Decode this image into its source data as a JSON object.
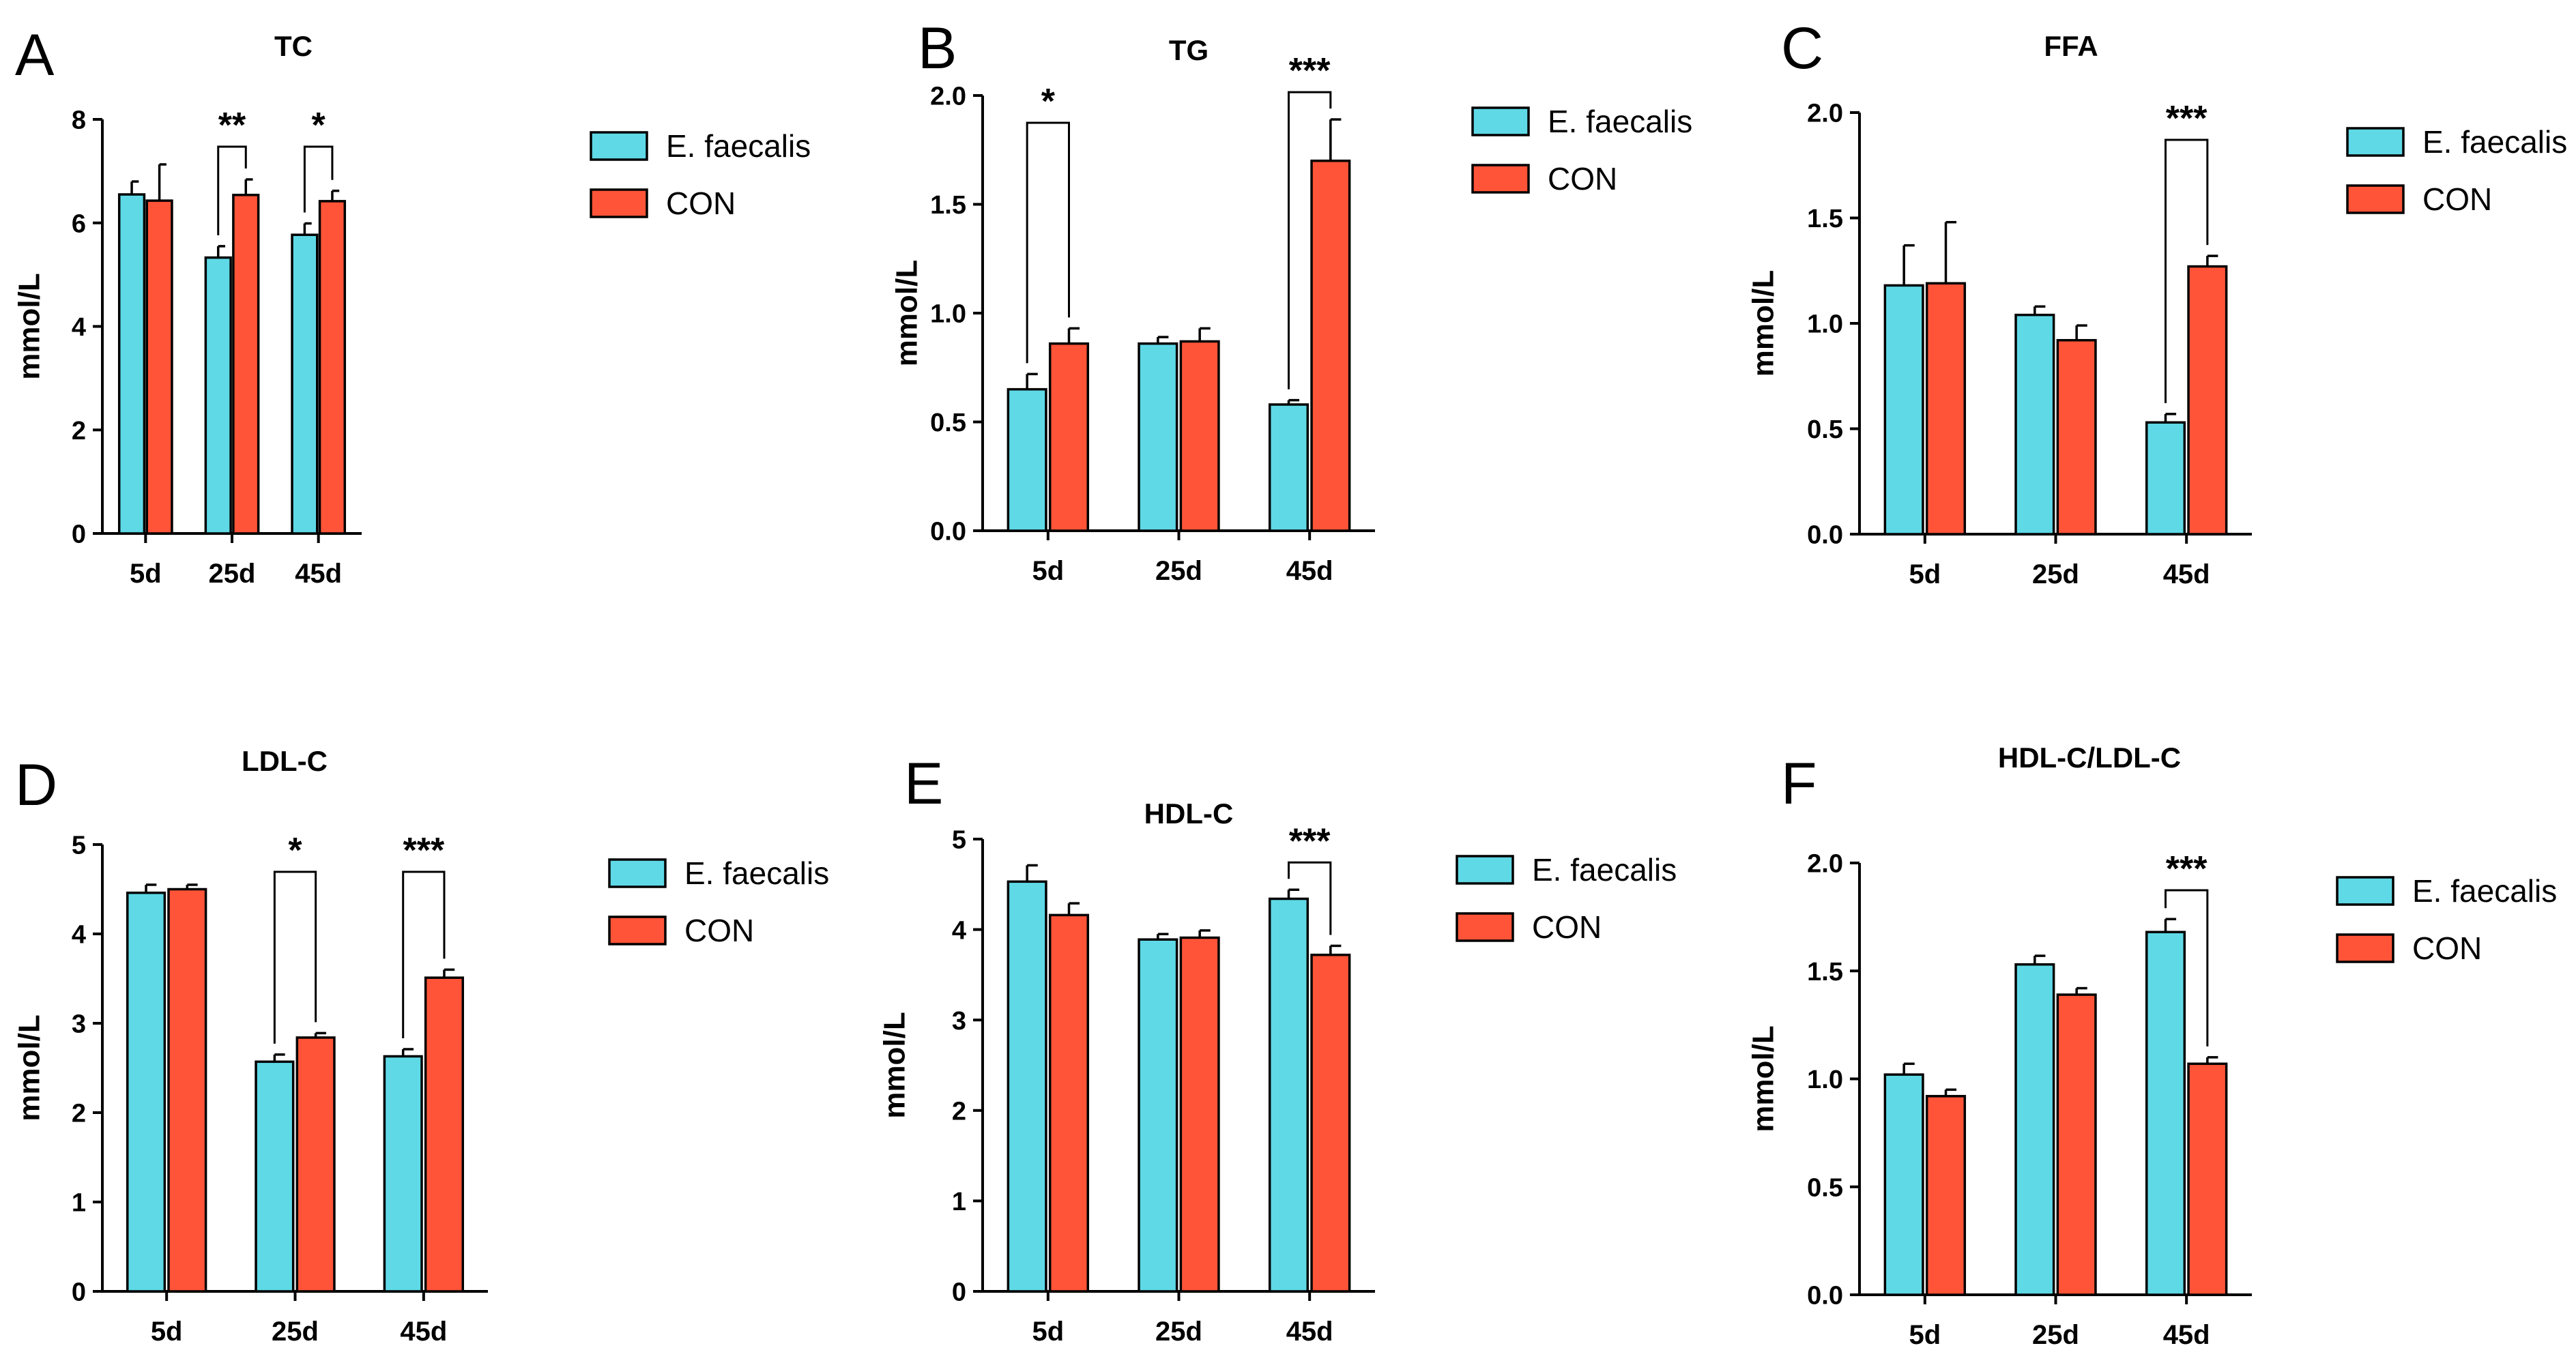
{
  "colors": {
    "ef": "#5FD9E6",
    "con": "#FF5438",
    "axis": "#000000"
  },
  "chart_data": [
    {
      "panel_id": "panel-a",
      "letter": "A",
      "type": "bar",
      "title": "TC",
      "ylabel": "mmol/L",
      "categories": [
        "5d",
        "25d",
        "45d"
      ],
      "ylim": [
        0,
        8
      ],
      "yticks": [
        "0",
        "2",
        "4",
        "6",
        "8"
      ],
      "series": [
        {
          "name": "E. faecalis",
          "values": [
            6.55,
            5.33,
            5.77
          ],
          "errors": [
            0.25,
            0.22,
            0.22
          ]
        },
        {
          "name": "CON",
          "values": [
            6.43,
            6.54,
            6.42
          ],
          "errors": [
            0.7,
            0.3,
            0.2
          ]
        }
      ],
      "significance": [
        {
          "category": "25d",
          "label": "**"
        },
        {
          "category": "45d",
          "label": "*"
        }
      ],
      "legend": [
        "E. faecalis",
        "CON"
      ]
    },
    {
      "panel_id": "panel-b",
      "letter": "B",
      "type": "bar",
      "title": "TG",
      "ylabel": "mmol/L",
      "categories": [
        "5d",
        "25d",
        "45d"
      ],
      "ylim": [
        0,
        2
      ],
      "yticks": [
        "0.0",
        "0.5",
        "1.0",
        "1.5",
        "2.0"
      ],
      "series": [
        {
          "name": "E. faecalis",
          "values": [
            0.65,
            0.86,
            0.58
          ],
          "errors": [
            0.07,
            0.03,
            0.02
          ]
        },
        {
          "name": "CON",
          "values": [
            0.86,
            0.87,
            1.7
          ],
          "errors": [
            0.07,
            0.06,
            0.19
          ]
        }
      ],
      "significance": [
        {
          "category": "5d",
          "label": "*"
        },
        {
          "category": "45d",
          "label": "***"
        }
      ],
      "legend": [
        "E. faecalis",
        "CON"
      ]
    },
    {
      "panel_id": "panel-c",
      "letter": "C",
      "type": "bar",
      "title": "FFA",
      "ylabel": "mmol/L",
      "categories": [
        "5d",
        "25d",
        "45d"
      ],
      "ylim": [
        0,
        2
      ],
      "yticks": [
        "0.0",
        "0.5",
        "1.0",
        "1.5",
        "2.0"
      ],
      "series": [
        {
          "name": "E. faecalis",
          "values": [
            1.18,
            1.04,
            0.53
          ],
          "errors": [
            0.19,
            0.04,
            0.04
          ]
        },
        {
          "name": "CON",
          "values": [
            1.19,
            0.92,
            1.27
          ],
          "errors": [
            0.29,
            0.07,
            0.05
          ]
        }
      ],
      "significance": [
        {
          "category": "45d",
          "label": "***"
        }
      ],
      "legend": [
        "E. faecalis",
        "CON"
      ]
    },
    {
      "panel_id": "panel-d",
      "letter": "D",
      "type": "bar",
      "title": "LDL-C",
      "ylabel": "mmol/L",
      "categories": [
        "5d",
        "25d",
        "45d"
      ],
      "ylim": [
        0,
        5
      ],
      "yticks": [
        "0",
        "1",
        "2",
        "3",
        "4",
        "5"
      ],
      "series": [
        {
          "name": "E. faecalis",
          "values": [
            4.46,
            2.57,
            2.63
          ],
          "errors": [
            0.09,
            0.08,
            0.08
          ]
        },
        {
          "name": "CON",
          "values": [
            4.5,
            2.84,
            3.51
          ],
          "errors": [
            0.05,
            0.05,
            0.09
          ]
        }
      ],
      "significance": [
        {
          "category": "25d",
          "label": "*"
        },
        {
          "category": "45d",
          "label": "***"
        }
      ],
      "legend": [
        "E. faecalis",
        "CON"
      ]
    },
    {
      "panel_id": "panel-e",
      "letter": "E",
      "type": "bar",
      "title": "HDL-C",
      "ylabel": "mmol/L",
      "categories": [
        "5d",
        "25d",
        "45d"
      ],
      "ylim": [
        0,
        5
      ],
      "yticks": [
        "0",
        "1",
        "2",
        "3",
        "4",
        "5"
      ],
      "series": [
        {
          "name": "E. faecalis",
          "values": [
            4.53,
            3.89,
            4.34
          ],
          "errors": [
            0.18,
            0.06,
            0.1
          ]
        },
        {
          "name": "CON",
          "values": [
            4.16,
            3.91,
            3.72
          ],
          "errors": [
            0.13,
            0.08,
            0.1
          ]
        }
      ],
      "significance": [
        {
          "category": "45d",
          "label": "***"
        }
      ],
      "legend": [
        "E. faecalis",
        "CON"
      ]
    },
    {
      "panel_id": "panel-f",
      "letter": "F",
      "type": "bar",
      "title": "HDL-C/LDL-C",
      "ylabel": "mmol/L",
      "categories": [
        "5d",
        "25d",
        "45d"
      ],
      "ylim": [
        0,
        2
      ],
      "yticks": [
        "0.0",
        "0.5",
        "1.0",
        "1.5",
        "2.0"
      ],
      "series": [
        {
          "name": "E. faecalis",
          "values": [
            1.02,
            1.53,
            1.68
          ],
          "errors": [
            0.05,
            0.04,
            0.06
          ]
        },
        {
          "name": "CON",
          "values": [
            0.92,
            1.39,
            1.07
          ],
          "errors": [
            0.03,
            0.03,
            0.03
          ]
        }
      ],
      "significance": [
        {
          "category": "45d",
          "label": "***"
        }
      ],
      "legend": [
        "E. faecalis",
        "CON"
      ]
    }
  ]
}
